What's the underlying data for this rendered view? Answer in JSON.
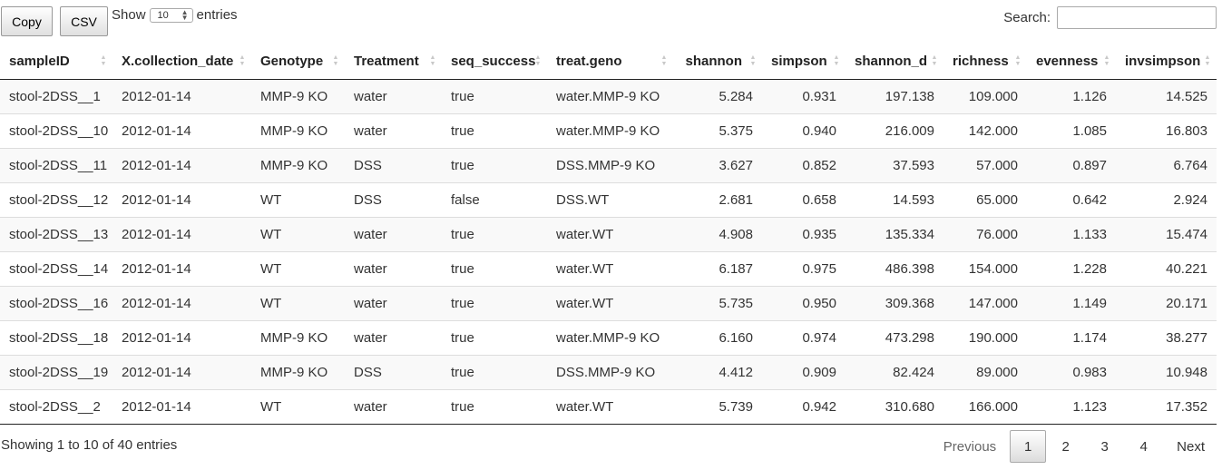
{
  "buttons": {
    "copy": "Copy",
    "csv": "CSV"
  },
  "length": {
    "prefix": "Show",
    "value": "10",
    "suffix": "entries"
  },
  "search": {
    "label": "Search:",
    "value": "",
    "placeholder": ""
  },
  "table": {
    "columns": [
      "sampleID",
      "X.collection_date",
      "Genotype",
      "Treatment",
      "seq_success",
      "treat.geno",
      "shannon",
      "simpson",
      "shannon_d",
      "richness",
      "evenness",
      "invsimpson"
    ],
    "rows": [
      [
        "stool-2DSS__1",
        "2012-01-14",
        "MMP-9 KO",
        "water",
        "true",
        "water.MMP-9 KO",
        "5.284",
        "0.931",
        "197.138",
        "109.000",
        "1.126",
        "14.525"
      ],
      [
        "stool-2DSS__10",
        "2012-01-14",
        "MMP-9 KO",
        "water",
        "true",
        "water.MMP-9 KO",
        "5.375",
        "0.940",
        "216.009",
        "142.000",
        "1.085",
        "16.803"
      ],
      [
        "stool-2DSS__11",
        "2012-01-14",
        "MMP-9 KO",
        "DSS",
        "true",
        "DSS.MMP-9 KO",
        "3.627",
        "0.852",
        "37.593",
        "57.000",
        "0.897",
        "6.764"
      ],
      [
        "stool-2DSS__12",
        "2012-01-14",
        "WT",
        "DSS",
        "false",
        "DSS.WT",
        "2.681",
        "0.658",
        "14.593",
        "65.000",
        "0.642",
        "2.924"
      ],
      [
        "stool-2DSS__13",
        "2012-01-14",
        "WT",
        "water",
        "true",
        "water.WT",
        "4.908",
        "0.935",
        "135.334",
        "76.000",
        "1.133",
        "15.474"
      ],
      [
        "stool-2DSS__14",
        "2012-01-14",
        "WT",
        "water",
        "true",
        "water.WT",
        "6.187",
        "0.975",
        "486.398",
        "154.000",
        "1.228",
        "40.221"
      ],
      [
        "stool-2DSS__16",
        "2012-01-14",
        "WT",
        "water",
        "true",
        "water.WT",
        "5.735",
        "0.950",
        "309.368",
        "147.000",
        "1.149",
        "20.171"
      ],
      [
        "stool-2DSS__18",
        "2012-01-14",
        "MMP-9 KO",
        "water",
        "true",
        "water.MMP-9 KO",
        "6.160",
        "0.974",
        "473.298",
        "190.000",
        "1.174",
        "38.277"
      ],
      [
        "stool-2DSS__19",
        "2012-01-14",
        "MMP-9 KO",
        "DSS",
        "true",
        "DSS.MMP-9 KO",
        "4.412",
        "0.909",
        "82.424",
        "89.000",
        "0.983",
        "10.948"
      ],
      [
        "stool-2DSS__2",
        "2012-01-14",
        "WT",
        "water",
        "true",
        "water.WT",
        "5.739",
        "0.942",
        "310.680",
        "166.000",
        "1.123",
        "17.352"
      ]
    ]
  },
  "info": "Showing 1 to 10 of 40 entries",
  "pagination": {
    "previous": "Previous",
    "pages": [
      "1",
      "2",
      "3",
      "4"
    ],
    "current": "1",
    "next": "Next"
  }
}
